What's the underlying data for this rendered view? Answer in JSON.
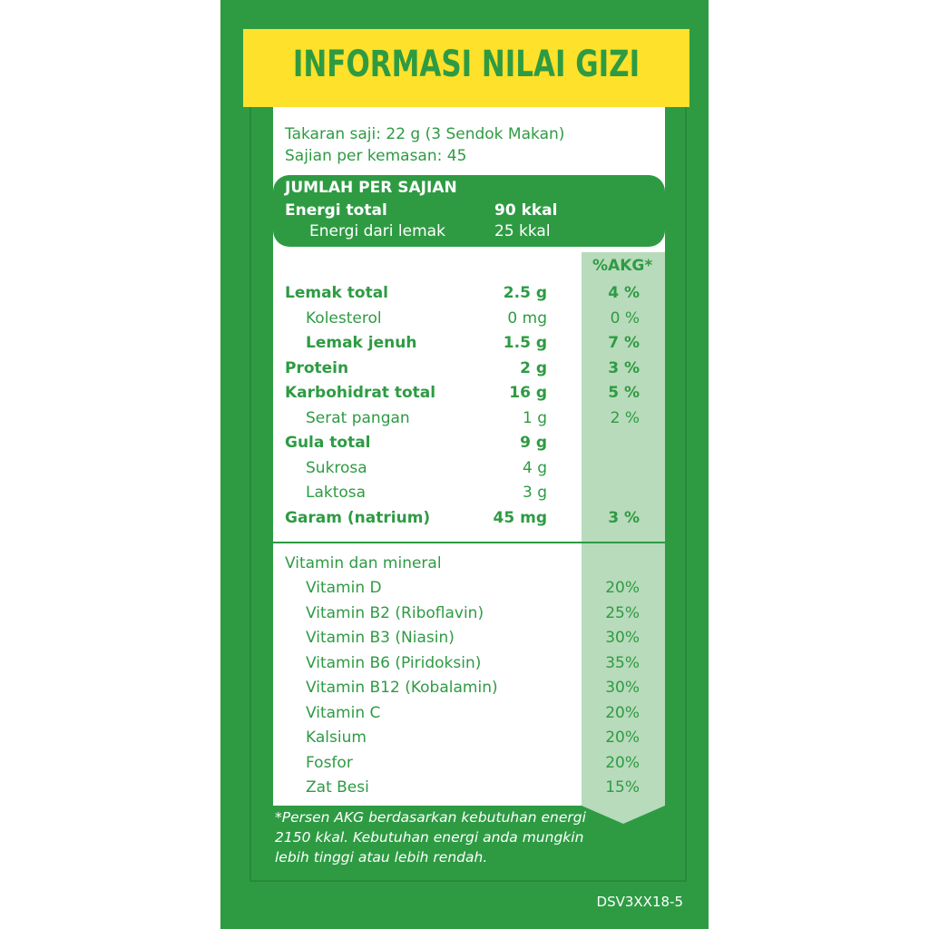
{
  "colors": {
    "panel": "#2e9b43",
    "banner": "#fde12a",
    "akg_column": "#b8dbbb",
    "text": "#2e9b43"
  },
  "title": "INFORMASI NILAI GIZI",
  "serving": {
    "size": "Takaran saji: 22 g (3 Sendok Makan)",
    "per_pack": "Sajian per kemasan: 45"
  },
  "amount_box": {
    "heading": "JUMLAH PER SAJIAN",
    "energy_label": "Energi total",
    "energy_value": "90 kkal",
    "fat_energy_label": "Energi dari lemak",
    "fat_energy_value": "25 kkal"
  },
  "akg_header": "%AKG*",
  "nutrients": [
    {
      "label": "Lemak total",
      "amount": "2.5 g",
      "akg": "4 %",
      "bold": true,
      "indent": false
    },
    {
      "label": "Kolesterol",
      "amount": "0 mg",
      "akg": "0 %",
      "bold": false,
      "indent": true
    },
    {
      "label": "Lemak jenuh",
      "amount": "1.5 g",
      "akg": "7 %",
      "bold": true,
      "indent": true
    },
    {
      "label": "Protein",
      "amount": "2 g",
      "akg": "3 %",
      "bold": true,
      "indent": false
    },
    {
      "label": "Karbohidrat total",
      "amount": "16 g",
      "akg": "5 %",
      "bold": true,
      "indent": false
    },
    {
      "label": "Serat pangan",
      "amount": "1 g",
      "akg": "2 %",
      "bold": false,
      "indent": true
    },
    {
      "label": "Gula total",
      "amount": "9 g",
      "akg": "",
      "bold": true,
      "indent": false
    },
    {
      "label": "Sukrosa",
      "amount": "4 g",
      "akg": "",
      "bold": false,
      "indent": true
    },
    {
      "label": "Laktosa",
      "amount": "3 g",
      "akg": "",
      "bold": false,
      "indent": true
    },
    {
      "label": "Garam (natrium)",
      "amount": "45 mg",
      "akg": "3 %",
      "bold": true,
      "indent": false
    }
  ],
  "vitamins_heading": "Vitamin dan mineral",
  "vitamins": [
    {
      "label": "Vitamin D",
      "akg": "20%"
    },
    {
      "label": "Vitamin B2 (Riboflavin)",
      "akg": "25%"
    },
    {
      "label": "Vitamin B3 (Niasin)",
      "akg": "30%"
    },
    {
      "label": "Vitamin B6 (Piridoksin)",
      "akg": "35%"
    },
    {
      "label": "Vitamin B12 (Kobalamin)",
      "akg": "30%"
    },
    {
      "label": "Vitamin C",
      "akg": "20%"
    },
    {
      "label": "Kalsium",
      "akg": "20%"
    },
    {
      "label": "Fosfor",
      "akg": "20%"
    },
    {
      "label": "Zat Besi",
      "akg": "15%"
    }
  ],
  "footnote": "*Persen AKG berdasarkan kebutuhan energi 2150 kkal. Kebutuhan energi anda mungkin lebih tinggi atau lebih rendah.",
  "code": "DSV3XX18-5"
}
